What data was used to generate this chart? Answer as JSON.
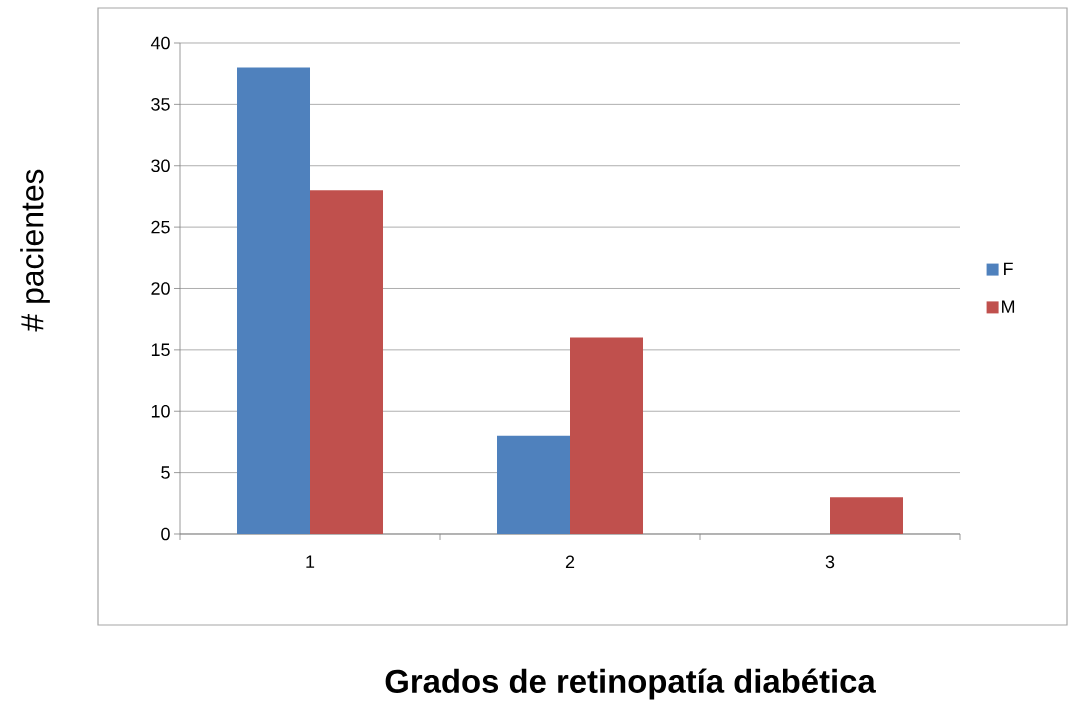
{
  "chart_data": {
    "type": "bar",
    "xlabel": "Grados  de retinopatía diabética",
    "ylabel": "# pacientes",
    "categories": [
      "1",
      "2",
      "3"
    ],
    "series": [
      {
        "name": "F",
        "color": "#4f81bd",
        "values": [
          38,
          8,
          0
        ]
      },
      {
        "name": "M",
        "color": "#c0504d",
        "values": [
          28,
          16,
          3
        ]
      }
    ],
    "ylim": [
      0,
      40
    ],
    "yticks": [
      0,
      5,
      10,
      15,
      20,
      25,
      30,
      35,
      40
    ],
    "grid": "y",
    "legend": "right"
  }
}
